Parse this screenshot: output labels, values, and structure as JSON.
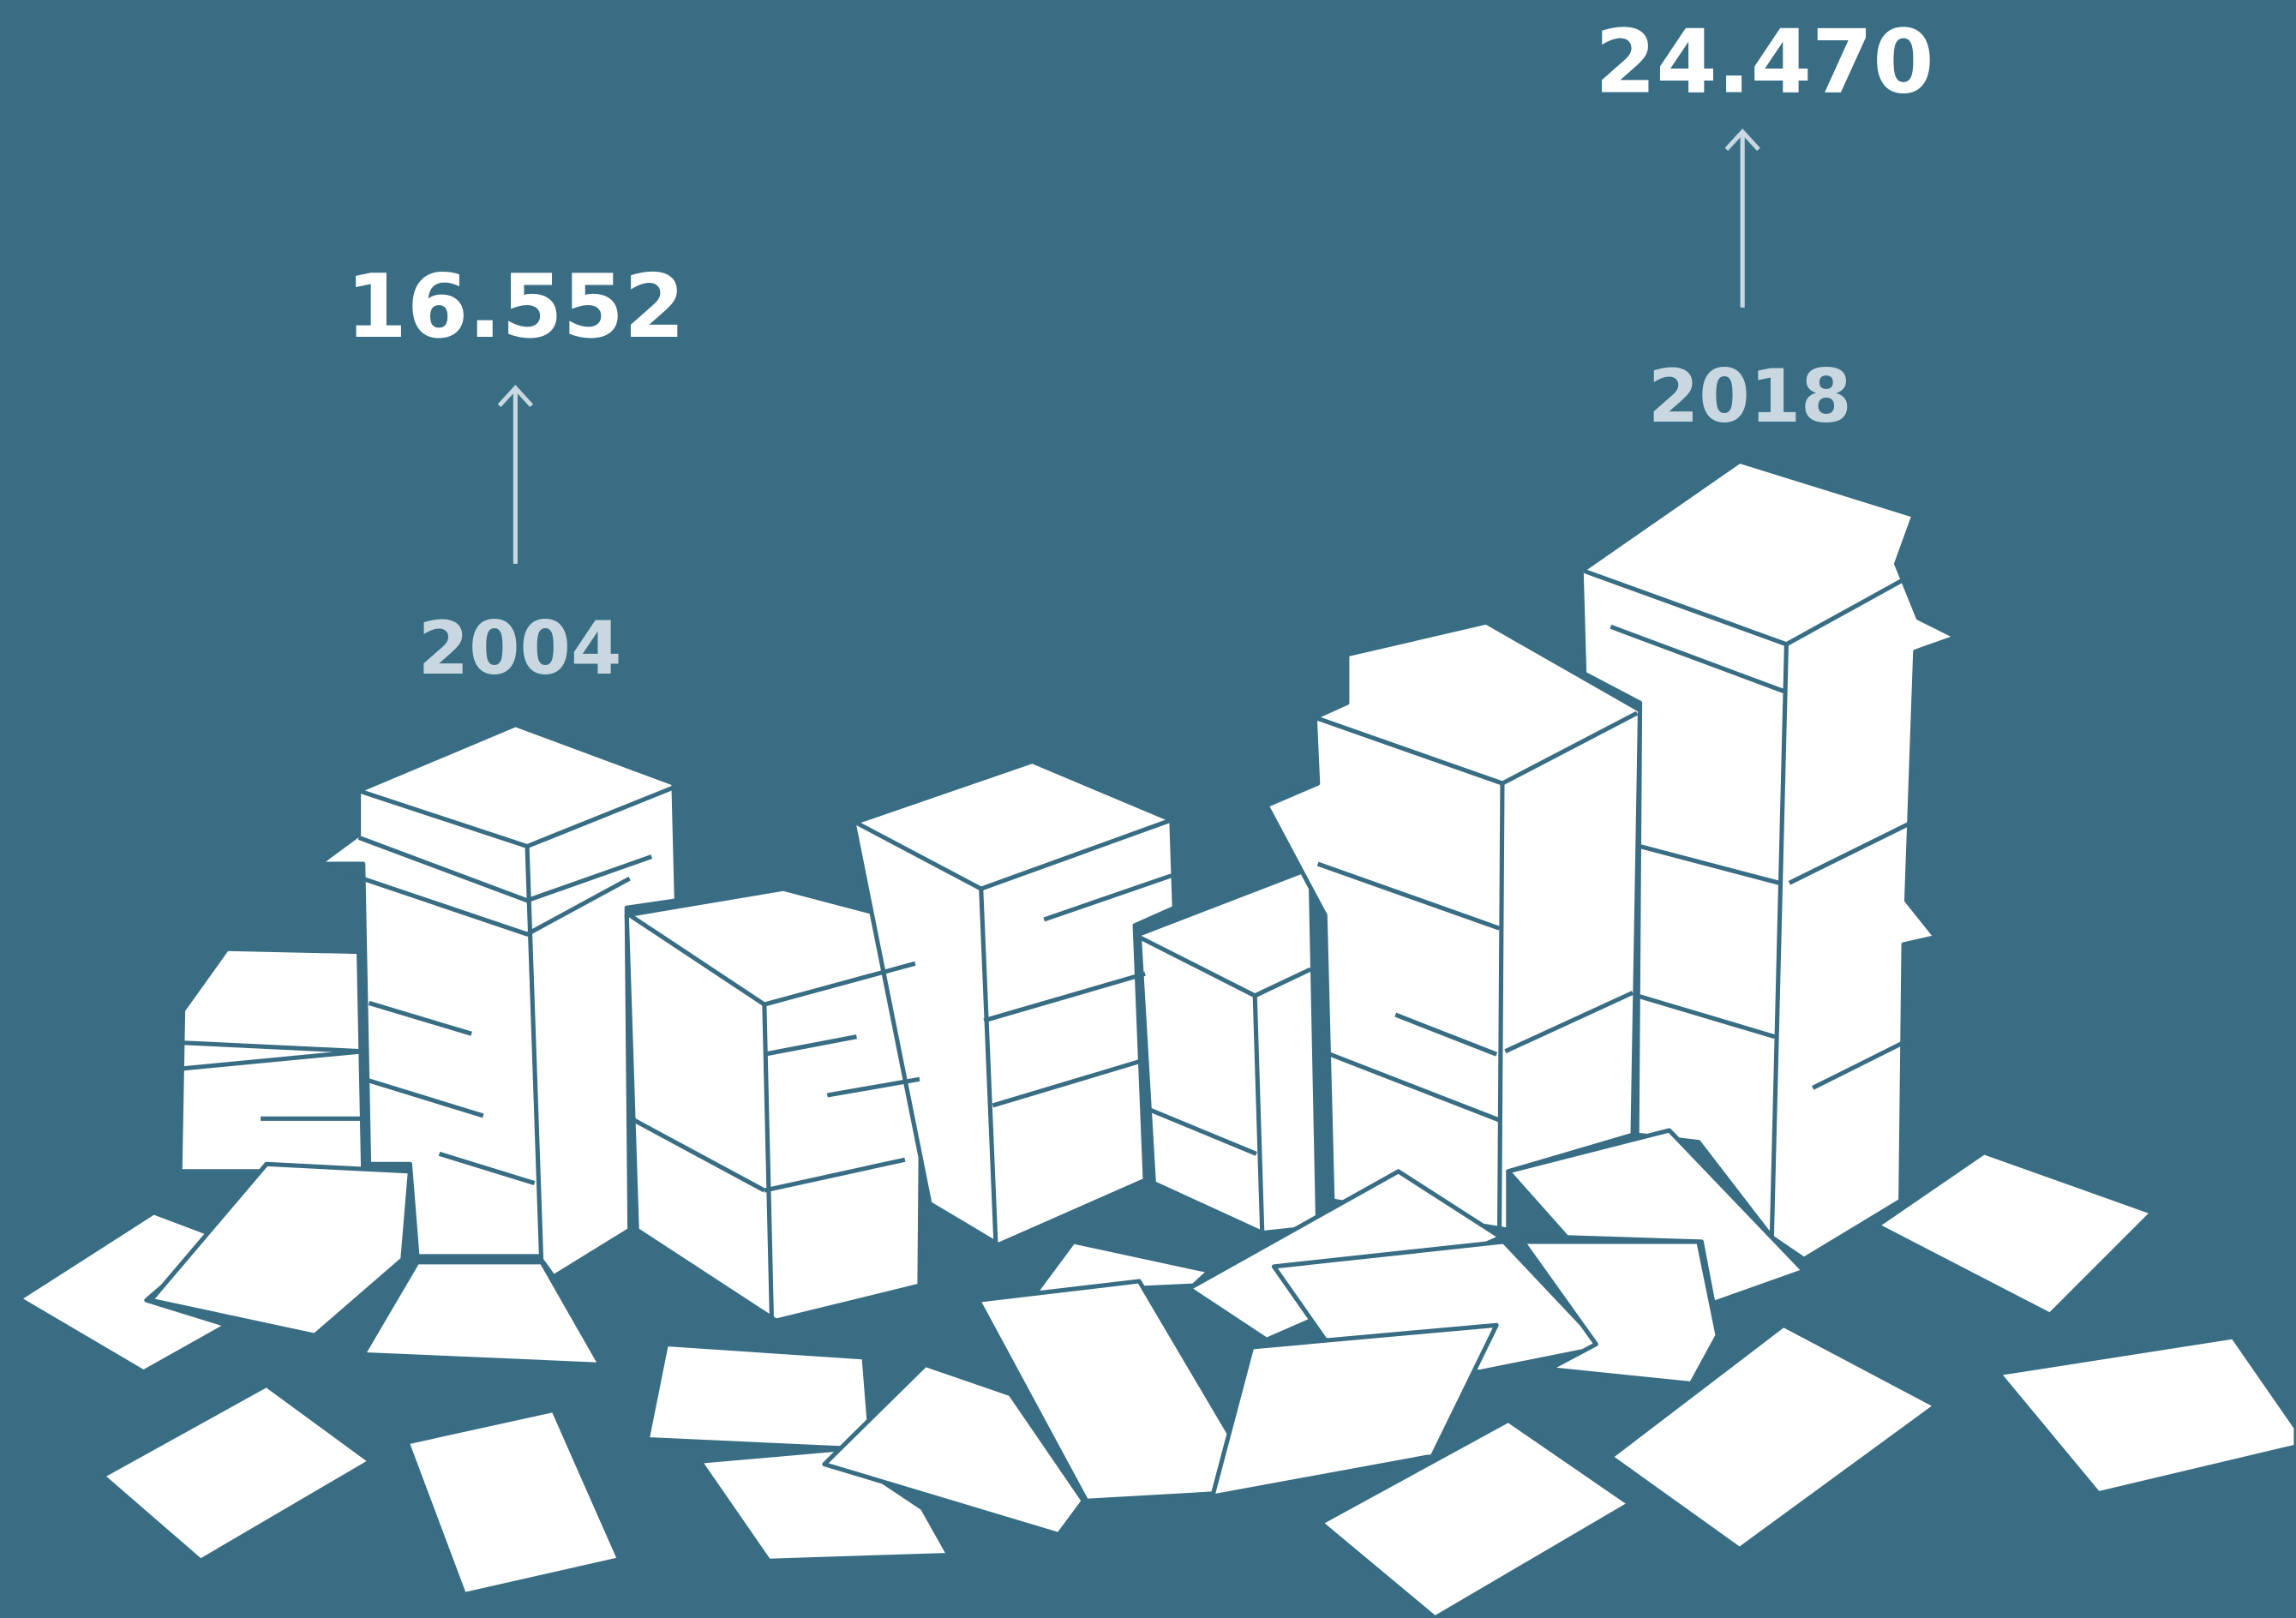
{
  "labels": [
    {
      "value": "16.552",
      "year": "2004"
    },
    {
      "value": "24.470",
      "year": "2018"
    }
  ]
}
